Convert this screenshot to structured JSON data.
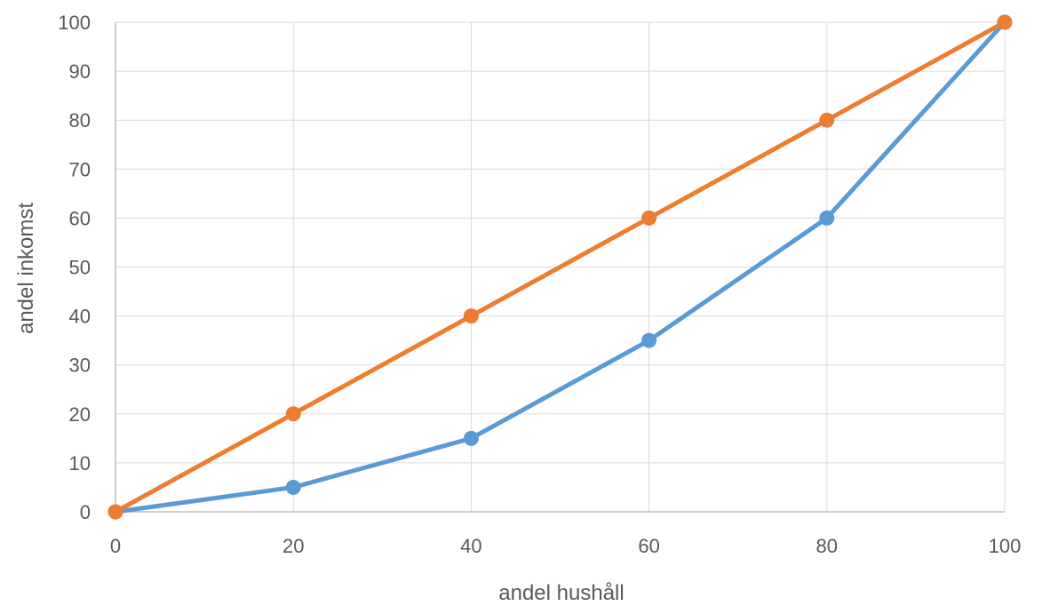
{
  "chart_data": {
    "type": "line",
    "xlabel": "andel hushåll",
    "ylabel": "andel inkomst",
    "x": [
      0,
      20,
      40,
      60,
      80,
      100
    ],
    "xlim": [
      0,
      100
    ],
    "ylim": [
      0,
      100
    ],
    "xticks": [
      "0",
      "20",
      "40",
      "60",
      "80",
      "100"
    ],
    "yticks": [
      "0",
      "10",
      "20",
      "30",
      "40",
      "50",
      "60",
      "70",
      "80",
      "90",
      "100"
    ],
    "grid": true,
    "legend": "none",
    "series": [
      {
        "values": [
          0,
          5,
          15,
          35,
          60,
          100
        ],
        "color": "#5b9bd5"
      },
      {
        "values": [
          0,
          20,
          40,
          60,
          80,
          100
        ],
        "color": "#ed7d31"
      }
    ]
  }
}
